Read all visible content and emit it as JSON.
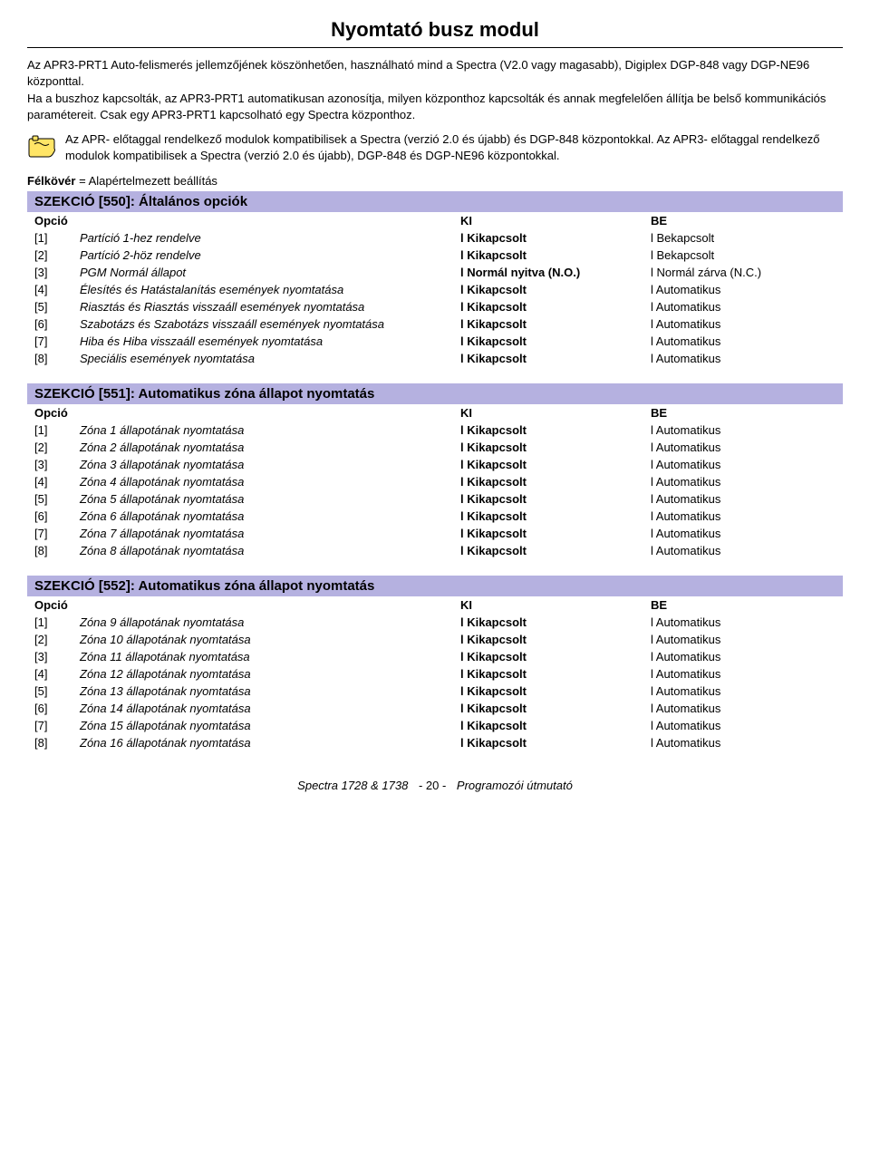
{
  "title": "Nyomtató busz modul",
  "intro": {
    "p1": "Az APR3-PRT1 Auto-felismerés jellemzőjének köszönhetően, használható mind a Spectra (V2.0 vagy magasabb), Digiplex DGP-848 vagy DGP-NE96 központtal.",
    "p2": "Ha a buszhoz kapcsolták, az APR3-PRT1 automatikusan azonosítja, milyen központhoz kapcsolták és annak megfelelően állítja be belső kommunikációs paramétereit. Csak egy APR3-PRT1 kapcsolható egy Spectra központhoz."
  },
  "note": "Az APR- előtaggal rendelkező modulok kompatibilisek a Spectra (verzió 2.0 és újabb) és DGP-848 központokkal. Az APR3- előtaggal rendelkező modulok kompatibilisek a Spectra (verzió 2.0 és újabb), DGP-848 és DGP-NE96 központokkal.",
  "defaults_line_prefix": "Félkövér",
  "defaults_line_rest": " = Alapértelmezett beállítás",
  "hdr": {
    "opt": "Opció",
    "ki": "KI",
    "be": "BE"
  },
  "l_prefix": "l ",
  "sec550": {
    "title": "SZEKCIÓ [550]: Általános opciók",
    "rows": [
      {
        "num": "[1]",
        "desc": "Partíció 1-hez rendelve",
        "ki": "Kikapcsolt",
        "ki_bold": true,
        "be": "Bekapcsolt",
        "be_bold": false
      },
      {
        "num": "[2]",
        "desc": "Partíció 2-höz rendelve",
        "ki": "Kikapcsolt",
        "ki_bold": true,
        "be": "Bekapcsolt",
        "be_bold": false
      },
      {
        "num": "[3]",
        "desc": "PGM Normál állapot",
        "ki": "Normál nyitva (N.O.)",
        "ki_bold": true,
        "be": "Normál zárva (N.C.)",
        "be_bold": false
      },
      {
        "num": "[4]",
        "desc": "Élesítés és Hatástalanítás események nyomtatása",
        "ki": "Kikapcsolt",
        "ki_bold": true,
        "be": "Automatikus",
        "be_bold": false
      },
      {
        "num": "[5]",
        "desc": "Riasztás és Riasztás visszaáll események nyomtatása",
        "ki": "Kikapcsolt",
        "ki_bold": true,
        "be": "Automatikus",
        "be_bold": false
      },
      {
        "num": "[6]",
        "desc": "Szabotázs és Szabotázs visszaáll események nyomtatása",
        "ki": "Kikapcsolt",
        "ki_bold": true,
        "be": "Automatikus",
        "be_bold": false
      },
      {
        "num": "[7]",
        "desc": "Hiba és Hiba visszaáll események nyomtatása",
        "ki": "Kikapcsolt",
        "ki_bold": true,
        "be": "Automatikus",
        "be_bold": false
      },
      {
        "num": "[8]",
        "desc": "Speciális események nyomtatása",
        "ki": "Kikapcsolt",
        "ki_bold": true,
        "be": "Automatikus",
        "be_bold": false
      }
    ]
  },
  "sec551": {
    "title": "SZEKCIÓ [551]: Automatikus zóna állapot nyomtatás",
    "rows": [
      {
        "num": "[1]",
        "desc": "Zóna 1 állapotának nyomtatása",
        "ki": "Kikapcsolt",
        "ki_bold": true,
        "be": "Automatikus",
        "be_bold": false
      },
      {
        "num": "[2]",
        "desc": "Zóna 2 állapotának nyomtatása",
        "ki": "Kikapcsolt",
        "ki_bold": true,
        "be": "Automatikus",
        "be_bold": false
      },
      {
        "num": "[3]",
        "desc": "Zóna 3 állapotának nyomtatása",
        "ki": "Kikapcsolt",
        "ki_bold": true,
        "be": "Automatikus",
        "be_bold": false
      },
      {
        "num": "[4]",
        "desc": "Zóna 4 állapotának nyomtatása",
        "ki": "Kikapcsolt",
        "ki_bold": true,
        "be": "Automatikus",
        "be_bold": false
      },
      {
        "num": "[5]",
        "desc": "Zóna 5 állapotának nyomtatása",
        "ki": "Kikapcsolt",
        "ki_bold": true,
        "be": "Automatikus",
        "be_bold": false
      },
      {
        "num": "[6]",
        "desc": "Zóna 6 állapotának nyomtatása",
        "ki": "Kikapcsolt",
        "ki_bold": true,
        "be": "Automatikus",
        "be_bold": false
      },
      {
        "num": "[7]",
        "desc": "Zóna 7 állapotának nyomtatása",
        "ki": "Kikapcsolt",
        "ki_bold": true,
        "be": "Automatikus",
        "be_bold": false
      },
      {
        "num": "[8]",
        "desc": "Zóna 8 állapotának nyomtatása",
        "ki": "Kikapcsolt",
        "ki_bold": true,
        "be": "Automatikus",
        "be_bold": false
      }
    ]
  },
  "sec552": {
    "title": "SZEKCIÓ [552]: Automatikus zóna állapot nyomtatás",
    "rows": [
      {
        "num": "[1]",
        "desc": "Zóna 9 állapotának nyomtatása",
        "ki": "Kikapcsolt",
        "ki_bold": true,
        "be": "Automatikus",
        "be_bold": false
      },
      {
        "num": "[2]",
        "desc": "Zóna 10 állapotának nyomtatása",
        "ki": "Kikapcsolt",
        "ki_bold": true,
        "be": "Automatikus",
        "be_bold": false
      },
      {
        "num": "[3]",
        "desc": "Zóna 11 állapotának nyomtatása",
        "ki": "Kikapcsolt",
        "ki_bold": true,
        "be": "Automatikus",
        "be_bold": false
      },
      {
        "num": "[4]",
        "desc": "Zóna 12 állapotának nyomtatása",
        "ki": "Kikapcsolt",
        "ki_bold": true,
        "be": "Automatikus",
        "be_bold": false
      },
      {
        "num": "[5]",
        "desc": "Zóna 13 állapotának nyomtatása",
        "ki": "Kikapcsolt",
        "ki_bold": true,
        "be": "Automatikus",
        "be_bold": false
      },
      {
        "num": "[6]",
        "desc": "Zóna 14 állapotának nyomtatása",
        "ki": "Kikapcsolt",
        "ki_bold": true,
        "be": "Automatikus",
        "be_bold": false
      },
      {
        "num": "[7]",
        "desc": "Zóna 15 állapotának nyomtatása",
        "ki": "Kikapcsolt",
        "ki_bold": true,
        "be": "Automatikus",
        "be_bold": false
      },
      {
        "num": "[8]",
        "desc": "Zóna 16 állapotának nyomtatása",
        "ki": "Kikapcsolt",
        "ki_bold": true,
        "be": "Automatikus",
        "be_bold": false
      }
    ]
  },
  "footer": {
    "left": "Spectra 1728 & 1738",
    "page": "- 20 -",
    "right": "Programozói útmutató"
  },
  "colors": {
    "header_bg": "#b5b1e0",
    "text": "#000000",
    "icon_border": "#000000",
    "icon_fill": "#ffe566"
  }
}
